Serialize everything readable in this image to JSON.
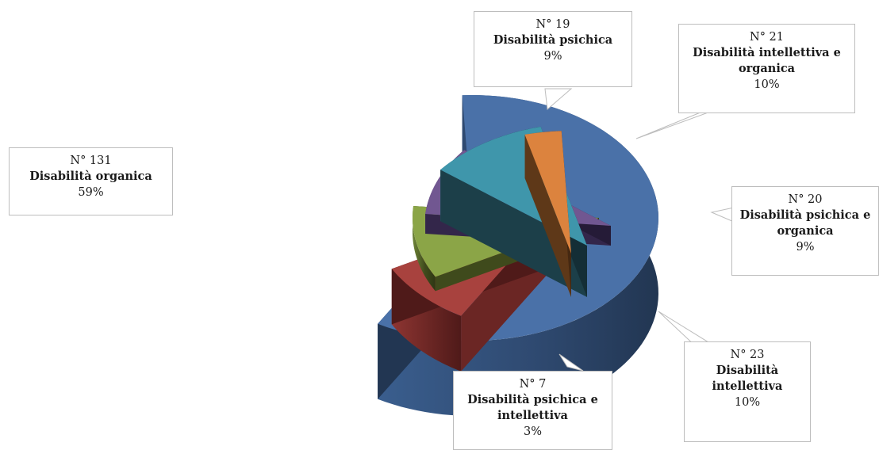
{
  "chart_data": {
    "type": "pie",
    "style": "3d-exploded",
    "legend": "none",
    "slices": [
      {
        "key": "organica",
        "name": "Disabilità organica",
        "count_label": "N° 131",
        "percent_label": "59%",
        "value": 131,
        "colors": {
          "top": "#4A71A8",
          "side": "#2F4A71",
          "side_dark": "#223652",
          "rim": "#3A5E8E"
        }
      },
      {
        "key": "psichica",
        "name": "Disabilità psichica",
        "count_label": "N° 19",
        "percent_label": "9%",
        "value": 19,
        "colors": {
          "top": "#A8423E",
          "side": "#6B2624",
          "side_dark": "#4F1A19",
          "rim": "#8E3532"
        }
      },
      {
        "key": "intellettiva-organica",
        "name": "Disabilità intellettiva e organica",
        "count_label": "N° 21",
        "percent_label": "10%",
        "value": 21,
        "colors": {
          "top": "#8BA547",
          "side": "#3F4A1C",
          "side_dark": "#2E3714",
          "rim": "#6F8538"
        }
      },
      {
        "key": "psichica-organica",
        "name": "Disabilità psichica e organica",
        "count_label": "N° 20",
        "percent_label": "9%",
        "value": 20,
        "colors": {
          "top": "#715791",
          "side": "#33264A",
          "side_dark": "#251B37",
          "rim": "#5B4676"
        }
      },
      {
        "key": "intellettiva",
        "name": "Disabilità intellettiva",
        "count_label": "N° 23",
        "percent_label": "10%",
        "value": 23,
        "colors": {
          "top": "#3F96AB",
          "side": "#1C3F49",
          "side_dark": "#142E36",
          "rim": "#327A8B"
        }
      },
      {
        "key": "psichica-intellettiva",
        "name": "Disabilità psichica e intellettiva",
        "count_label": "N° 7",
        "percent_label": "3%",
        "value": 7,
        "colors": {
          "top": "#DC833E",
          "side": "#5E3818",
          "side_dark": "#452811",
          "rim": "#B26A31"
        }
      }
    ]
  }
}
